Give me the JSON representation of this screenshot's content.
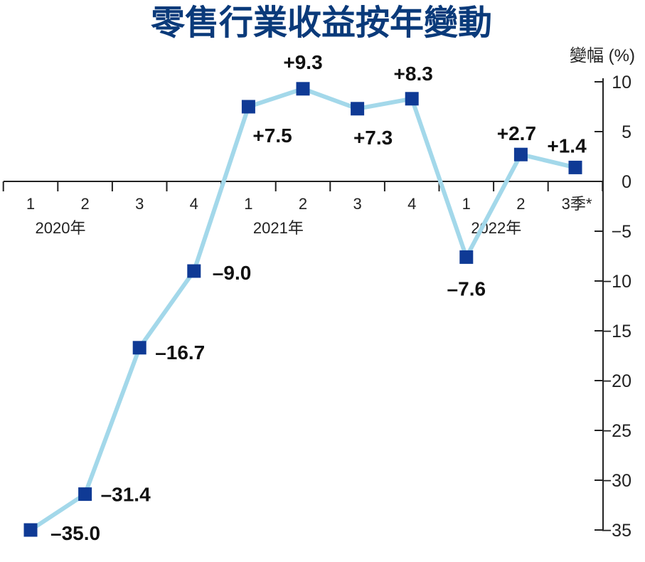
{
  "chart_data": {
    "type": "line",
    "title": "零售行業收益按年變動",
    "ylabel": "變幅 (%)",
    "ylim": [
      -35,
      10
    ],
    "yticks": [
      10,
      5,
      0,
      -5,
      -10,
      -15,
      -20,
      -25,
      -30,
      -35
    ],
    "categories": [
      "1",
      "2",
      "3",
      "4",
      "1",
      "2",
      "3",
      "4",
      "1",
      "2",
      "3季*"
    ],
    "years": [
      "2020年",
      "2021年",
      "2022年"
    ],
    "values": [
      -35.0,
      -31.4,
      -16.7,
      -9.0,
      7.5,
      9.3,
      7.3,
      8.3,
      -7.6,
      2.7,
      1.4
    ],
    "data_labels": [
      "–35.0",
      "–31.4",
      "–16.7",
      "–9.0",
      "+7.5",
      "+9.3",
      "+7.3",
      "+8.3",
      "–7.6",
      "+2.7",
      "+1.4"
    ],
    "colors": {
      "line": "#a3d8ea",
      "marker": "#0f3a95",
      "title": "#0a3a7a"
    }
  }
}
